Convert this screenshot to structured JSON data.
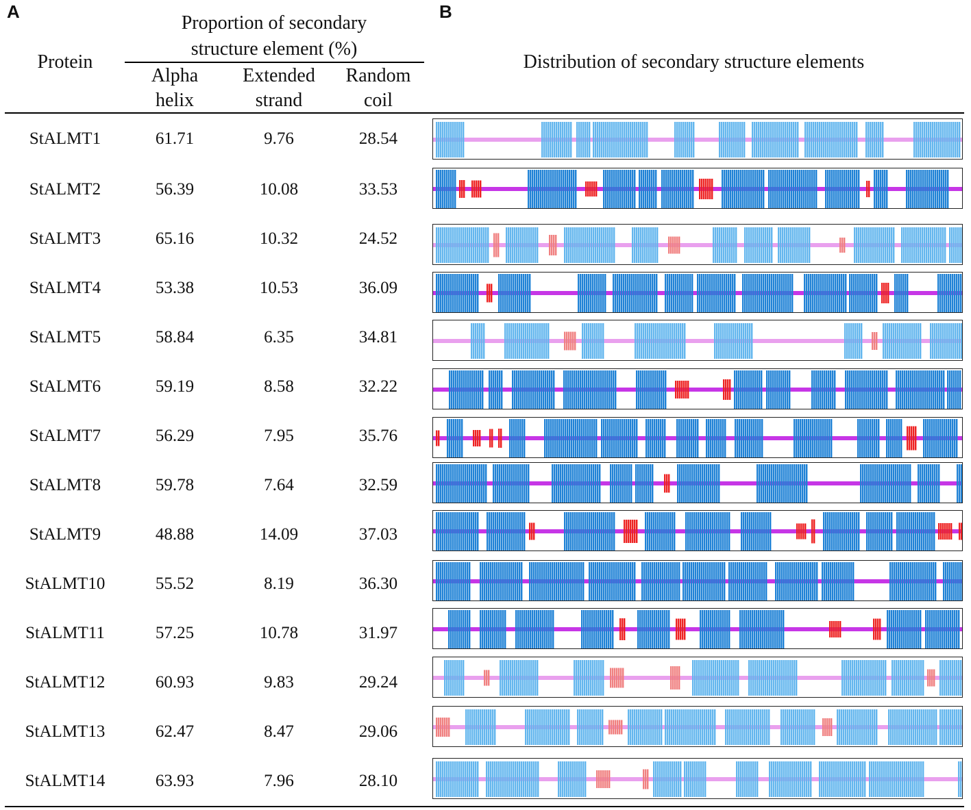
{
  "panels": {
    "a": "A",
    "b": "B"
  },
  "headers": {
    "protein": "Protein",
    "proportion_line1": "Proportion  of secondary",
    "proportion_line2": "structure  element (%)",
    "alpha_line1": "Alpha",
    "alpha_line2": "helix",
    "extended_line1": "Extended",
    "extended_line2": "strand",
    "random_line1": "Random",
    "random_line2": "coil",
    "distribution": "Distribution  of secondary  structure  elements"
  },
  "colors": {
    "helix_dark": "#1f82d6",
    "helix_light": "#63b6ee",
    "strand": "#ee2222",
    "strand_light": "#f08080",
    "coil": "#c636e6",
    "coil_light": "#e9a0ee"
  },
  "rows": [
    {
      "protein": "StALMT1",
      "alpha": "61.71",
      "extended": "9.76",
      "random": "28.54",
      "style": "light"
    },
    {
      "protein": "StALMT2",
      "alpha": "56.39",
      "extended": "10.08",
      "random": "33.53",
      "style": "dark"
    },
    {
      "protein": "StALMT3",
      "alpha": "65.16",
      "extended": "10.32",
      "random": "24.52",
      "style": "light"
    },
    {
      "protein": "StALMT4",
      "alpha": "53.38",
      "extended": "10.53",
      "random": "36.09",
      "style": "dark"
    },
    {
      "protein": "StALMT5",
      "alpha": "58.84",
      "extended": "6.35",
      "random": "34.81",
      "style": "light"
    },
    {
      "protein": "StALMT6",
      "alpha": "59.19",
      "extended": "8.58",
      "random": "32.22",
      "style": "dark"
    },
    {
      "protein": "StALMT7",
      "alpha": "56.29",
      "extended": "7.95",
      "random": "35.76",
      "style": "dark"
    },
    {
      "protein": "StALMT8",
      "alpha": "59.78",
      "extended": "7.64",
      "random": "32.59",
      "style": "dark"
    },
    {
      "protein": "StALMT9",
      "alpha": "48.88",
      "extended": "14.09",
      "random": "37.03",
      "style": "dark"
    },
    {
      "protein": "StALMT10",
      "alpha": "55.52",
      "extended": "8.19",
      "random": "36.30",
      "style": "dark"
    },
    {
      "protein": "StALMT11",
      "alpha": "57.25",
      "extended": "10.78",
      "random": "31.97",
      "style": "dark"
    },
    {
      "protein": "StALMT12",
      "alpha": "60.93",
      "extended": "9.83",
      "random": "29.24",
      "style": "light"
    },
    {
      "protein": "StALMT13",
      "alpha": "62.47",
      "extended": "8.47",
      "random": "29.06",
      "style": "light"
    },
    {
      "protein": "StALMT14",
      "alpha": "63.93",
      "extended": "7.96",
      "random": "28.10",
      "style": "light"
    }
  ]
}
